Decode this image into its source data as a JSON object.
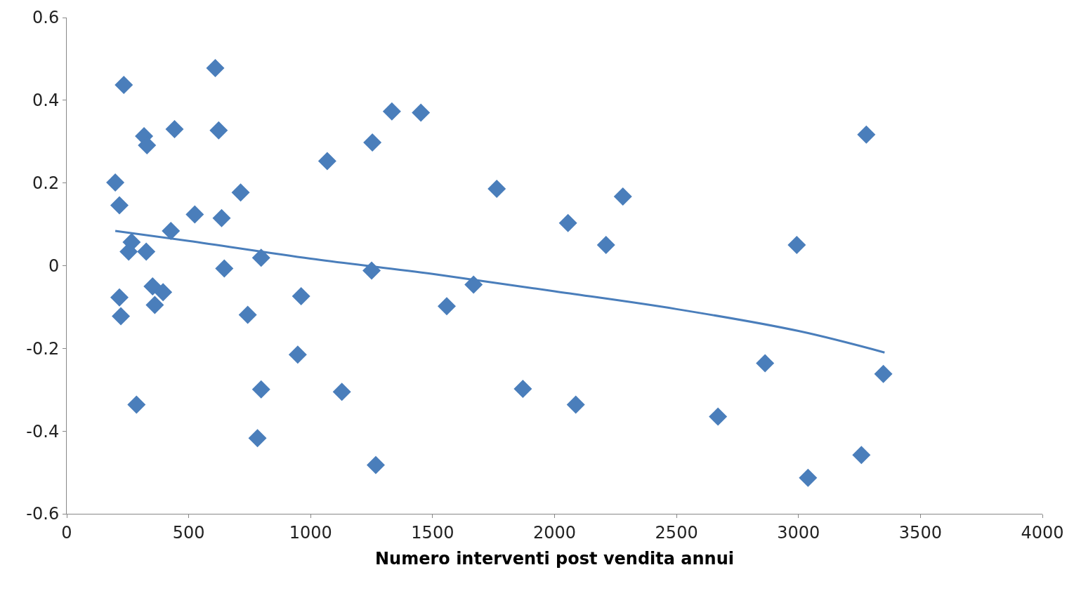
{
  "chart_data": {
    "type": "scatter",
    "xlabel": "Numero interventi post vendita annui",
    "xlim": [
      0,
      4000
    ],
    "xticks": [
      0,
      500,
      1000,
      1500,
      2000,
      2500,
      3000,
      3500,
      4000
    ],
    "ylim": [
      -0.6,
      0.6
    ],
    "yticks": [
      -0.6,
      -0.4,
      -0.2,
      0,
      0.2,
      0.4,
      0.6
    ],
    "marker": "diamond",
    "series": [
      {
        "color": "#4a7ebb",
        "x": [
          234,
          609,
          317,
          329,
          442,
          623,
          199,
          216,
          525,
          635,
          713,
          427,
          266,
          254,
          326,
          646,
          797,
          352,
          395,
          361,
          216,
          222,
          742,
          961,
          947,
          286,
          797,
          782,
          1068,
          1253,
          1333,
          1452,
          1250,
          1128,
          1267,
          1558,
          1668,
          1763,
          1870,
          2055,
          2087,
          2211,
          2280,
          2670,
          2863,
          2993,
          3039,
          3258,
          3278,
          3348
        ],
        "values": [
          0.437,
          0.478,
          0.313,
          0.291,
          0.33,
          0.327,
          0.201,
          0.146,
          0.124,
          0.115,
          0.177,
          0.084,
          0.057,
          0.034,
          0.034,
          -0.007,
          0.019,
          -0.05,
          -0.064,
          -0.095,
          -0.077,
          -0.122,
          -0.119,
          -0.074,
          -0.215,
          -0.336,
          -0.299,
          -0.417,
          0.253,
          0.298,
          0.373,
          0.37,
          -0.012,
          -0.305,
          -0.482,
          -0.098,
          -0.046,
          0.186,
          -0.298,
          0.103,
          -0.336,
          0.05,
          0.167,
          -0.365,
          -0.236,
          0.05,
          -0.513,
          -0.458,
          0.317,
          -0.262
        ]
      },
      {
        "type": "line",
        "color": "#4a7ebb",
        "line_style": "solid",
        "marker": "none",
        "x": [
          199,
          500,
          1000,
          1500,
          2000,
          2500,
          3000,
          3353
        ],
        "values": [
          0.084,
          0.06,
          0.017,
          -0.02,
          -0.062,
          -0.105,
          -0.158,
          -0.21
        ]
      }
    ]
  }
}
